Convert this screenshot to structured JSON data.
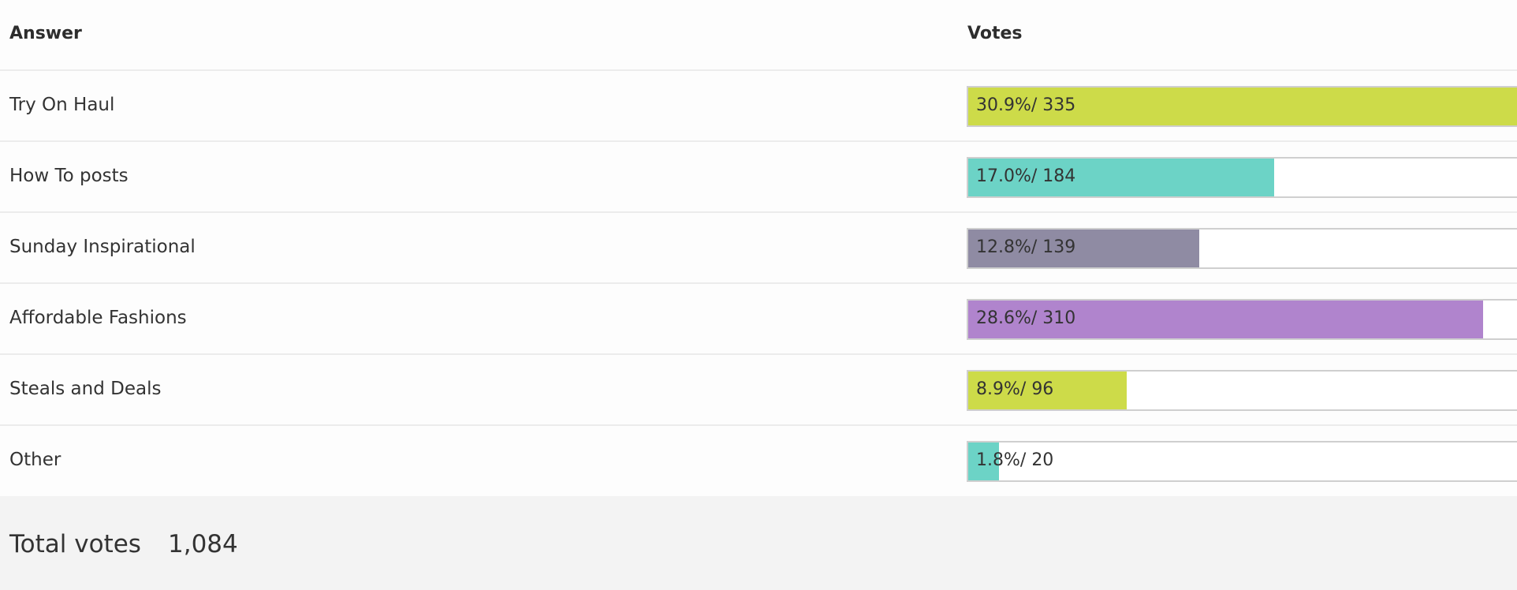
{
  "header": {
    "answer_label": "Answer",
    "votes_label": "Votes"
  },
  "answers": [
    {
      "label": "Try On Haul",
      "percent": "30.9%",
      "votes": "335",
      "color": "#cddb49",
      "bar_fraction": 1.0
    },
    {
      "label": "How To posts",
      "percent": "17.0%",
      "votes": "184",
      "color": "#6cd3c6",
      "bar_fraction": 0.55
    },
    {
      "label": "Sunday Inspirational",
      "percent": "12.8%",
      "votes": "139",
      "color": "#8f8ba3",
      "bar_fraction": 0.415
    },
    {
      "label": "Affordable Fashions",
      "percent": "28.6%",
      "votes": "310",
      "color": "#b084cd",
      "bar_fraction": 0.925
    },
    {
      "label": "Steals and Deals",
      "percent": "8.9%",
      "votes": "96",
      "color": "#cddb49",
      "bar_fraction": 0.285
    },
    {
      "label": "Other",
      "percent": "1.8%",
      "votes": "20",
      "color": "#6cd3c6",
      "bar_fraction": 0.055
    }
  ],
  "footer": {
    "total_label": "Total votes",
    "total_value": "1,084"
  }
}
